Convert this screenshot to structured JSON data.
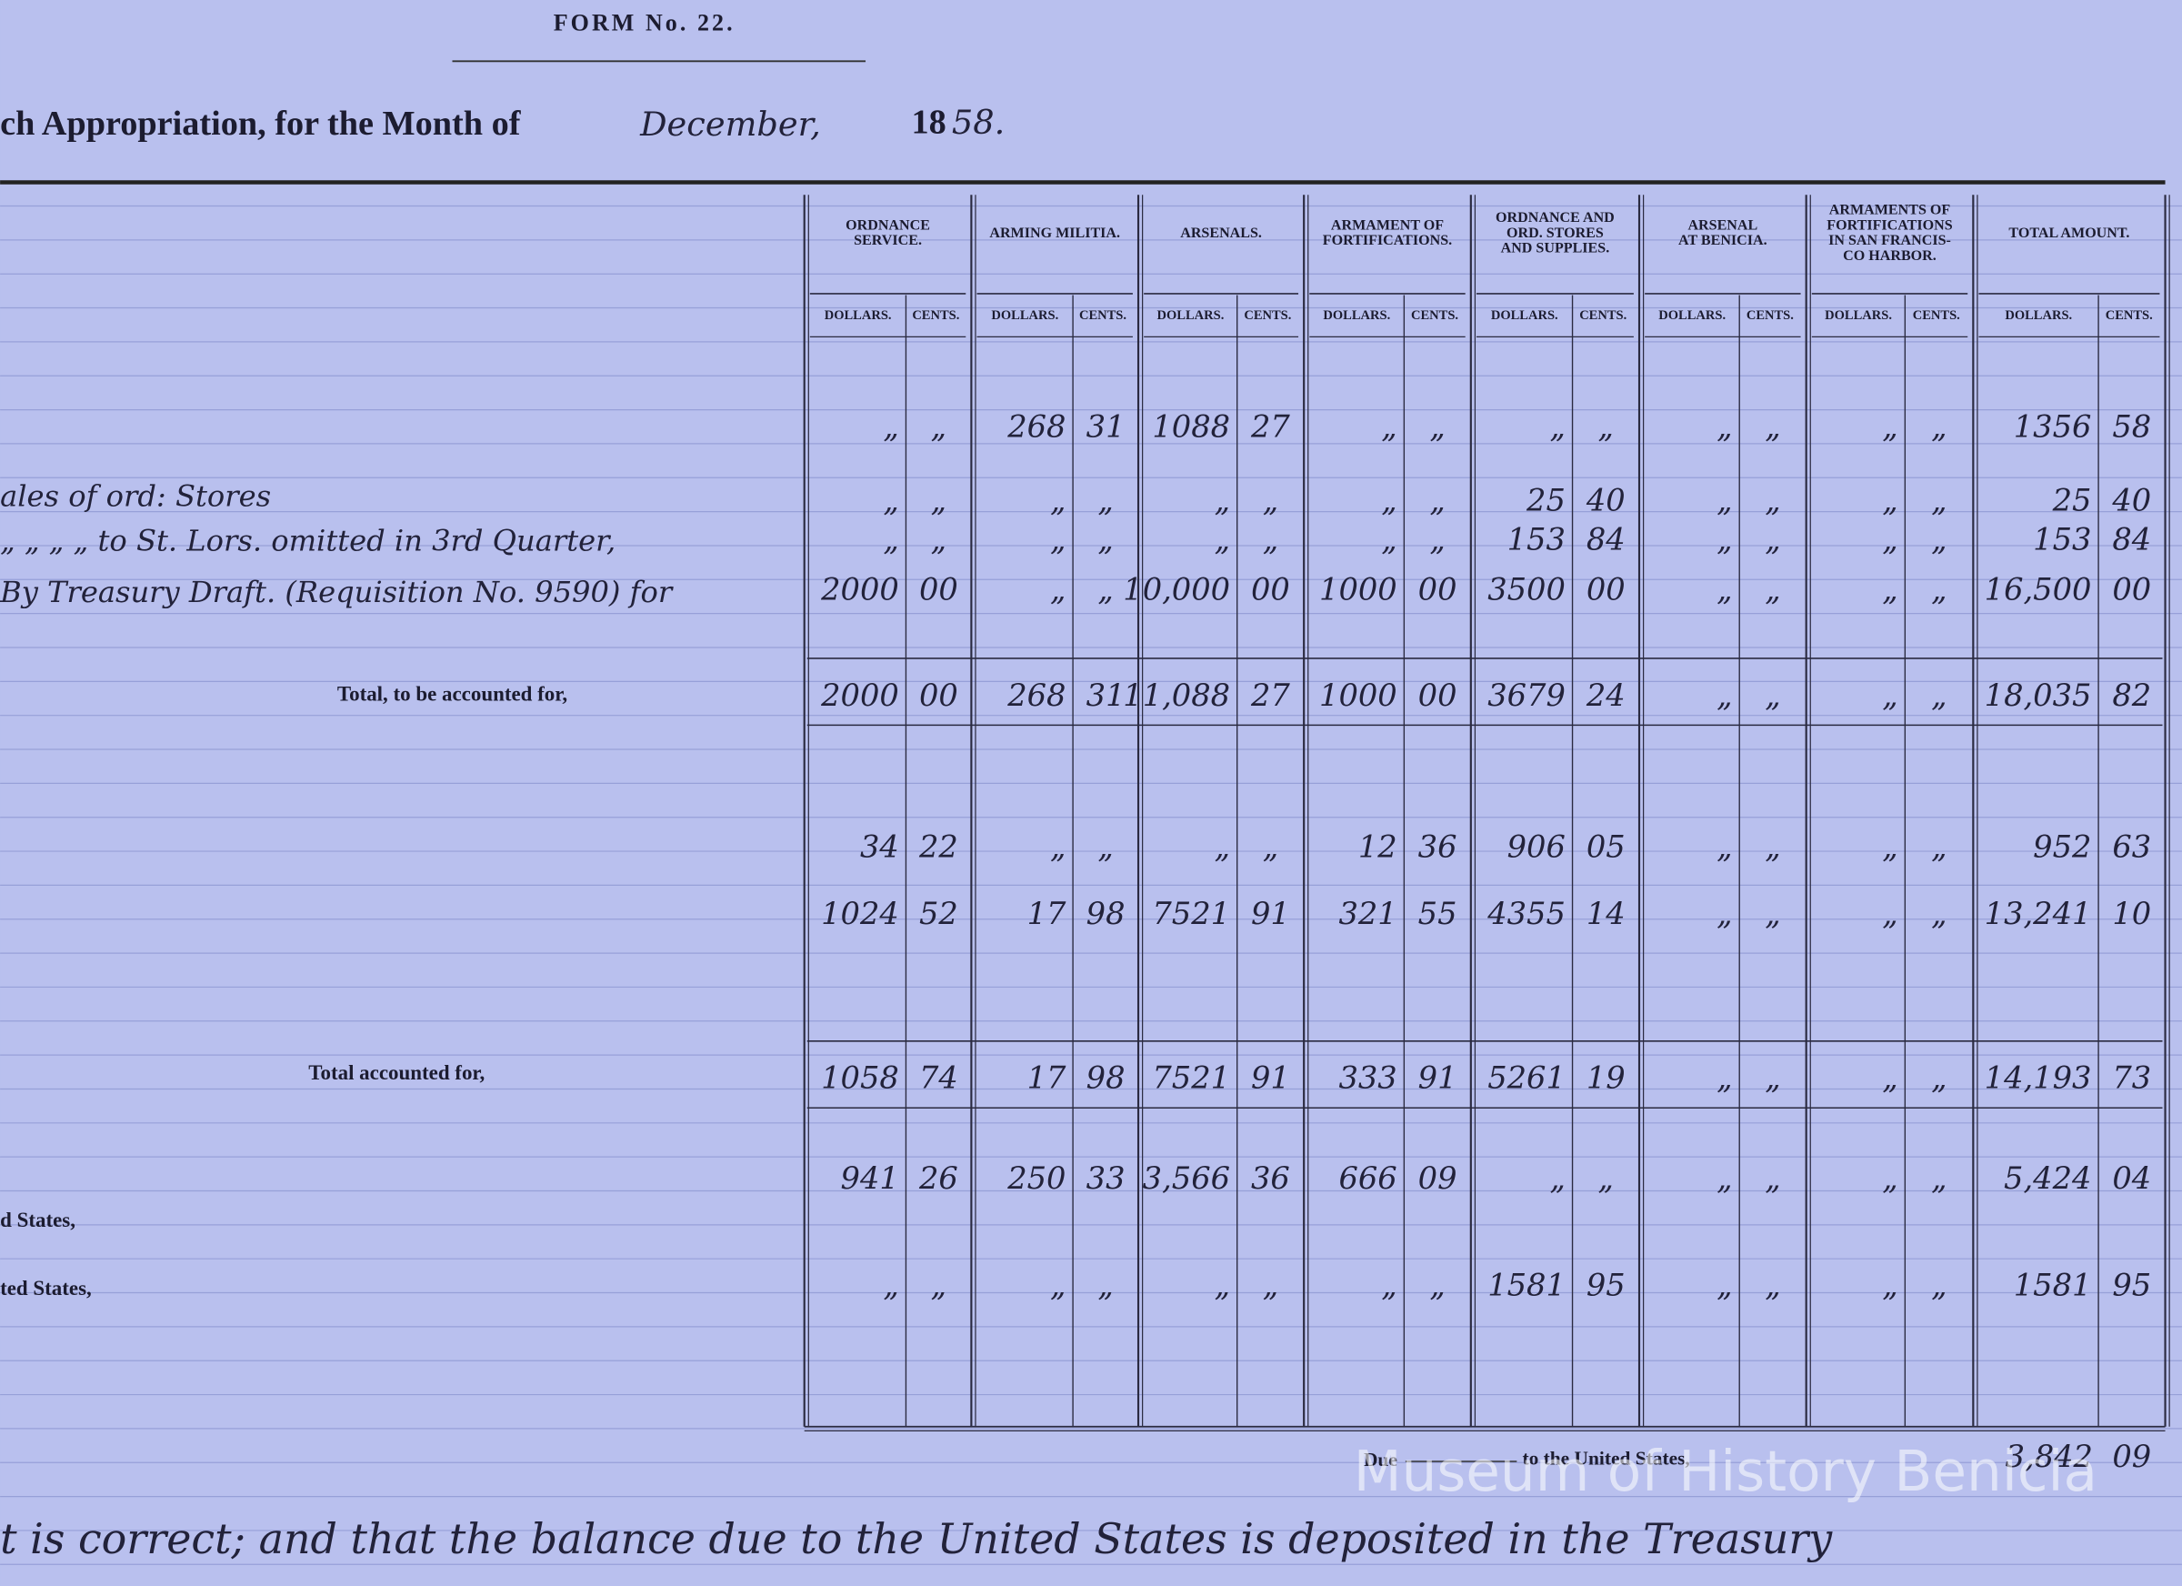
{
  "header": {
    "form": "FORM No. 22.",
    "title": "ch Appropriation, for the Month of",
    "month": "December,",
    "year_printed": "18",
    "year_written": "58."
  },
  "table": {
    "columns": [
      {
        "name": [
          "ORDNANCE",
          "SERVICE."
        ],
        "dollars": "DOLLARS.",
        "cents": "CENTS."
      },
      {
        "name": [
          "ARMING MILITIA."
        ],
        "dollars": "DOLLARS.",
        "cents": "CENTS."
      },
      {
        "name": [
          "ARSENALS."
        ],
        "dollars": "DOLLARS.",
        "cents": "CENTS."
      },
      {
        "name": [
          "ARMAMENT OF",
          "FORTIFICATIONS."
        ],
        "dollars": "DOLLARS.",
        "cents": "CENTS."
      },
      {
        "name": [
          "ORDNANCE AND",
          "ORD. STORES",
          "AND SUPPLIES."
        ],
        "dollars": "DOLLARS.",
        "cents": "CENTS."
      },
      {
        "name": [
          "ARSENAL",
          "AT BENICIA."
        ],
        "dollars": "DOLLARS.",
        "cents": "CENTS."
      },
      {
        "name": [
          "ARMAMENTS OF",
          "FORTIFICATIONS",
          "IN SAN FRANCIS-",
          "CO HARBOR."
        ],
        "dollars": "DOLLARS.",
        "cents": "CENTS."
      },
      {
        "name": [
          "TOTAL AMOUNT."
        ],
        "dollars": "DOLLARS.",
        "cents": "CENTS."
      }
    ],
    "rows": [
      {
        "cells": [
          [
            "„",
            "„"
          ],
          [
            "268",
            "31"
          ],
          [
            "1088",
            "27"
          ],
          [
            "„",
            "„"
          ],
          [
            "„",
            "„"
          ],
          [
            "„",
            "„"
          ],
          [
            "„",
            "„"
          ],
          [
            "1356",
            "58"
          ]
        ]
      },
      {
        "label": "ales of ord: Stores",
        "cells": [
          [
            "„",
            "„"
          ],
          [
            "„",
            "„"
          ],
          [
            "„",
            "„"
          ],
          [
            "„",
            "„"
          ],
          [
            "25",
            "40"
          ],
          [
            "„",
            "„"
          ],
          [
            "„",
            "„"
          ],
          [
            "25",
            "40"
          ]
        ]
      },
      {
        "label": "„  „  „  „  to St. Lors. omitted in 3rd Quarter,",
        "cells": [
          [
            "„",
            "„"
          ],
          [
            "„",
            "„"
          ],
          [
            "„",
            "„"
          ],
          [
            "„",
            "„"
          ],
          [
            "153",
            "84"
          ],
          [
            "„",
            "„"
          ],
          [
            "„",
            "„"
          ],
          [
            "153",
            "84"
          ]
        ]
      },
      {
        "label": "By Treasury Draft. (Requisition No. 9590) for",
        "cells": [
          [
            "2000",
            "00"
          ],
          [
            "„",
            "„"
          ],
          [
            "10,000",
            "00"
          ],
          [
            "1000",
            "00"
          ],
          [
            "3500",
            "00"
          ],
          [
            "„",
            "„"
          ],
          [
            "„",
            "„"
          ],
          [
            "16,500",
            "00"
          ]
        ]
      },
      {
        "label": "Total, to be accounted for,",
        "cells": [
          [
            "2000",
            "00"
          ],
          [
            "268",
            "31"
          ],
          [
            "11,088",
            "27"
          ],
          [
            "1000",
            "00"
          ],
          [
            "3679",
            "24"
          ],
          [
            "„",
            "„"
          ],
          [
            "„",
            "„"
          ],
          [
            "18,035",
            "82"
          ]
        ]
      },
      {
        "cells": [
          [
            "34",
            "22"
          ],
          [
            "„",
            "„"
          ],
          [
            "„",
            "„"
          ],
          [
            "12",
            "36"
          ],
          [
            "906",
            "05"
          ],
          [
            "„",
            "„"
          ],
          [
            "„",
            "„"
          ],
          [
            "952",
            "63"
          ]
        ]
      },
      {
        "cells": [
          [
            "1024",
            "52"
          ],
          [
            "17",
            "98"
          ],
          [
            "7521",
            "91"
          ],
          [
            "321",
            "55"
          ],
          [
            "4355",
            "14"
          ],
          [
            "„",
            "„"
          ],
          [
            "„",
            "„"
          ],
          [
            "13,241",
            "10"
          ]
        ]
      },
      {
        "label": "Total accounted for,",
        "cells": [
          [
            "1058",
            "74"
          ],
          [
            "17",
            "98"
          ],
          [
            "7521",
            "91"
          ],
          [
            "333",
            "91"
          ],
          [
            "5261",
            "19"
          ],
          [
            "„",
            "„"
          ],
          [
            "„",
            "„"
          ],
          [
            "14,193",
            "73"
          ]
        ]
      },
      {
        "label": "d States,",
        "cells": [
          [
            "941",
            "26"
          ],
          [
            "250",
            "33"
          ],
          [
            "3,566",
            "36"
          ],
          [
            "666",
            "09"
          ],
          [
            "„",
            "„"
          ],
          [
            "„",
            "„"
          ],
          [
            "„",
            "„"
          ],
          [
            "5,424",
            "04"
          ]
        ]
      },
      {
        "label": "ted States,",
        "cells": [
          [
            "„",
            "„"
          ],
          [
            "„",
            "„"
          ],
          [
            "„",
            "„"
          ],
          [
            "„",
            "„"
          ],
          [
            "1581",
            "95"
          ],
          [
            "„",
            "„"
          ],
          [
            "„",
            "„"
          ],
          [
            "1581",
            "95"
          ]
        ]
      }
    ]
  },
  "footer": {
    "due": "Due",
    "to": "to the United States,",
    "amount": [
      "3,842",
      "09"
    ]
  },
  "note": "t is correct; and that the balance due to the United States is deposited in the Treasury",
  "watermark": "Museum of History Benicia"
}
